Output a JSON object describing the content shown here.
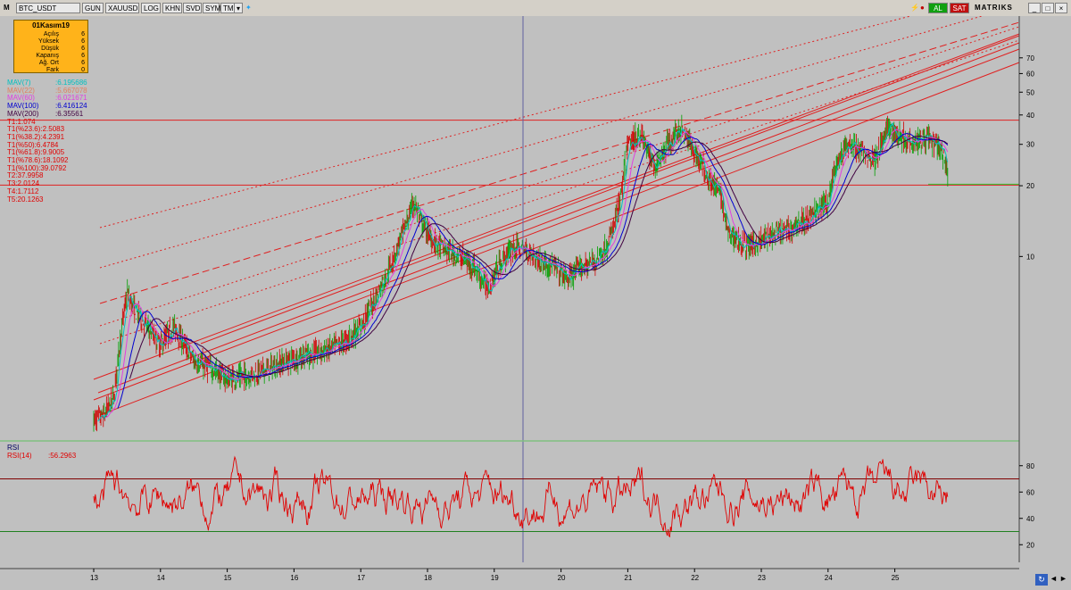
{
  "toolbar": {
    "logo": "M",
    "symbol": "BTC_USDT",
    "buttons": [
      "GUN",
      "XAUUSD",
      "LOG",
      "KHN",
      "SVD",
      "SYM",
      "TMP"
    ],
    "buy_label": "AL",
    "sell_label": "SAT",
    "brand": "MATRIKS"
  },
  "info_box": {
    "title": "01Kasım19",
    "rows": [
      {
        "label": "Açılış",
        "value": "6"
      },
      {
        "label": "Yüksek",
        "value": "6"
      },
      {
        "label": "Düşük",
        "value": "6"
      },
      {
        "label": "Kapanış",
        "value": "6"
      },
      {
        "label": "Ağ. Ort",
        "value": "6"
      },
      {
        "label": "Fark",
        "value": "0"
      }
    ]
  },
  "legend": [
    {
      "label": "MAV(7)",
      "value": ":6.195686",
      "color": "#00c0c0"
    },
    {
      "label": "MAV(22)",
      "value": ":5.667078",
      "color": "#e08060"
    },
    {
      "label": "MAV(60)",
      "value": ":6.021671",
      "color": "#e040e0"
    },
    {
      "label": "MAV(100)",
      "value": ":6.416124",
      "color": "#0000d0"
    },
    {
      "label": "MAV(200)",
      "value": ":6.35561",
      "color": "#400040"
    },
    {
      "label": "T1:1.074",
      "value": "",
      "color": "#e00000"
    },
    {
      "label": "T1(%23.6):2.5083",
      "value": "",
      "color": "#e00000"
    },
    {
      "label": "T1(%38.2):4.2391",
      "value": "",
      "color": "#e00000"
    },
    {
      "label": "T1(%50):6.4784",
      "value": "",
      "color": "#e00000"
    },
    {
      "label": "T1(%61.8):9.9005",
      "value": "",
      "color": "#e00000"
    },
    {
      "label": "T1(%78.6):18.1092",
      "value": "",
      "color": "#e00000"
    },
    {
      "label": "T1(%100):39.0792",
      "value": "",
      "color": "#e00000"
    },
    {
      "label": "T2:37.9958",
      "value": "",
      "color": "#e00000"
    },
    {
      "label": "T3:2.0124",
      "value": "",
      "color": "#e00000"
    },
    {
      "label": "T4:1.7112",
      "value": "",
      "color": "#e00000"
    },
    {
      "label": "T5:20.1263",
      "value": "",
      "color": "#e00000"
    }
  ],
  "rsi_legend": {
    "title": "RSI",
    "label": "RSI(14)",
    "value": ":56.2963"
  },
  "chart_data": {
    "type": "line",
    "log_scale": true,
    "x_ticks": [
      "13",
      "14",
      "15",
      "16",
      "17",
      "18",
      "19",
      "20",
      "21",
      "22",
      "23",
      "24",
      "25"
    ],
    "y_ticks": [
      10,
      20,
      30,
      40,
      50,
      60,
      70
    ],
    "price_path": [
      [
        13.0,
        2.0
      ],
      [
        13.15,
        2.1
      ],
      [
        13.3,
        2.5
      ],
      [
        13.4,
        4.5
      ],
      [
        13.5,
        7.0
      ],
      [
        13.6,
        6.0
      ],
      [
        13.8,
        5.0
      ],
      [
        14.0,
        4.2
      ],
      [
        14.2,
        5.0
      ],
      [
        14.5,
        3.6
      ],
      [
        14.8,
        3.3
      ],
      [
        15.0,
        3.0
      ],
      [
        15.3,
        3.1
      ],
      [
        15.6,
        3.3
      ],
      [
        15.9,
        3.6
      ],
      [
        16.2,
        3.8
      ],
      [
        16.5,
        4.0
      ],
      [
        16.8,
        4.4
      ],
      [
        17.0,
        5.0
      ],
      [
        17.2,
        6.5
      ],
      [
        17.4,
        8.5
      ],
      [
        17.6,
        12.0
      ],
      [
        17.8,
        17.0
      ],
      [
        17.9,
        14.0
      ],
      [
        18.1,
        11.5
      ],
      [
        18.3,
        10.5
      ],
      [
        18.5,
        10.0
      ],
      [
        18.7,
        9.0
      ],
      [
        18.9,
        7.3
      ],
      [
        19.1,
        9.5
      ],
      [
        19.3,
        11.0
      ],
      [
        19.5,
        10.5
      ],
      [
        19.7,
        9.5
      ],
      [
        19.9,
        9.0
      ],
      [
        20.1,
        8.0
      ],
      [
        20.3,
        9.0
      ],
      [
        20.5,
        9.5
      ],
      [
        20.7,
        11.0
      ],
      [
        20.9,
        18.0
      ],
      [
        21.0,
        30.0
      ],
      [
        21.2,
        33.0
      ],
      [
        21.4,
        24.0
      ],
      [
        21.6,
        30.0
      ],
      [
        21.8,
        35.0
      ],
      [
        22.0,
        28.0
      ],
      [
        22.2,
        22.0
      ],
      [
        22.4,
        18.0
      ],
      [
        22.5,
        12.5
      ],
      [
        22.8,
        11.0
      ],
      [
        23.1,
        12.0
      ],
      [
        23.4,
        13.0
      ],
      [
        23.7,
        14.5
      ],
      [
        24.0,
        17.0
      ],
      [
        24.1,
        24.0
      ],
      [
        24.3,
        30.0
      ],
      [
        24.5,
        28.0
      ],
      [
        24.7,
        26.0
      ],
      [
        24.9,
        35.0
      ],
      [
        25.1,
        32.0
      ],
      [
        25.3,
        31.0
      ],
      [
        25.5,
        32.0
      ],
      [
        25.7,
        28.0
      ],
      [
        25.8,
        22.0
      ]
    ],
    "horizontal_levels": [
      37.9958,
      20.1263
    ],
    "rsi": {
      "period": 14,
      "last": 56.2963,
      "y_ticks": [
        20,
        40,
        60,
        80
      ],
      "upper_band": 70,
      "lower_band": 30
    }
  }
}
